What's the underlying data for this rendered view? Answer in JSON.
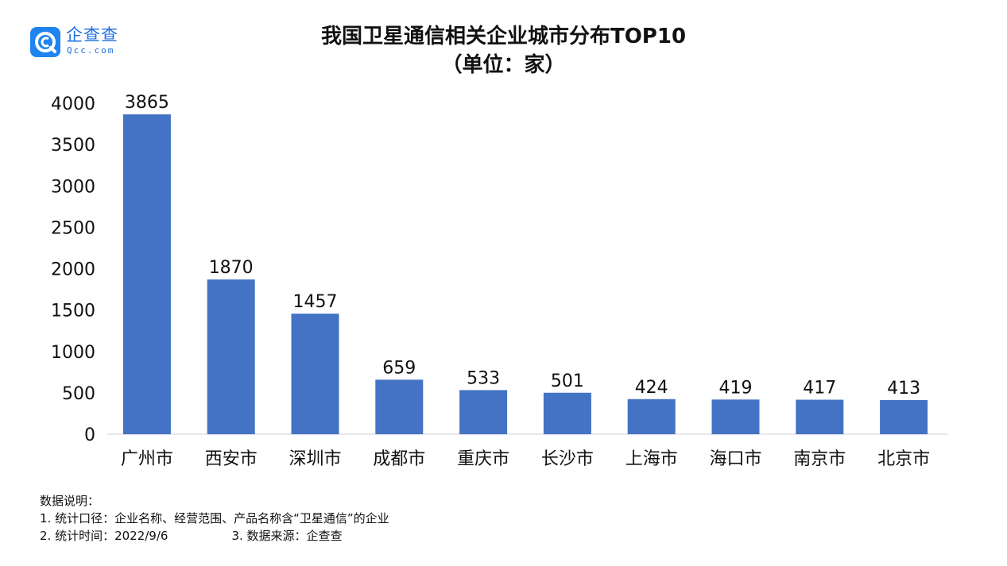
{
  "logo": {
    "name": "企查查",
    "domain": "Qcc.com"
  },
  "chart_data": {
    "type": "bar",
    "title": "我国卫星通信相关企业城市分布TOP10",
    "subtitle": "（单位：家）",
    "categories": [
      "广州市",
      "西安市",
      "深圳市",
      "成都市",
      "重庆市",
      "长沙市",
      "上海市",
      "海口市",
      "南京市",
      "北京市"
    ],
    "values": [
      3865,
      1870,
      1457,
      659,
      533,
      501,
      424,
      419,
      417,
      413
    ],
    "ylim": [
      0,
      4000
    ],
    "yticks": [
      0,
      500,
      1000,
      1500,
      2000,
      2500,
      3000,
      3500,
      4000
    ],
    "xlabel": "",
    "ylabel": "",
    "grid": false,
    "bar_color": "#4472c4",
    "data_labels": true
  },
  "notes": {
    "heading": "数据说明：",
    "line1": "1. 统计口径：企业名称、经营范围、产品名称含“卫星通信”的企业",
    "line2_a": "2. 统计时间：2022/9/6",
    "line2_b": "3. 数据来源：企查查"
  }
}
